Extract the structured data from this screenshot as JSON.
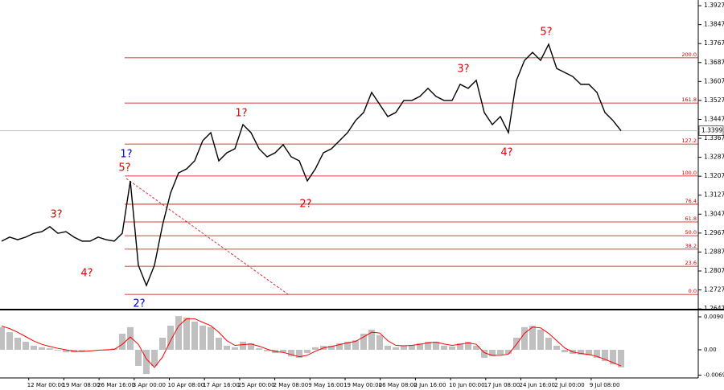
{
  "chart_data": [
    {
      "type": "line",
      "color": "#000000",
      "values": [
        1.2933,
        1.295,
        1.2939,
        1.295,
        1.2966,
        1.2973,
        1.2994,
        1.2966,
        1.2973,
        1.295,
        1.2933,
        1.2933,
        1.295,
        1.2939,
        1.2933,
        1.2966,
        1.3187,
        1.2831,
        1.2746,
        1.2831,
        1.3,
        1.3136,
        1.3221,
        1.3238,
        1.3272,
        1.3357,
        1.3391,
        1.3272,
        1.3306,
        1.3323,
        1.3425,
        1.3391,
        1.3323,
        1.3289,
        1.3306,
        1.334,
        1.3289,
        1.3272,
        1.3187,
        1.3238,
        1.3306,
        1.3323,
        1.3357,
        1.3391,
        1.3442,
        1.3476,
        1.3561,
        1.351,
        1.3459,
        1.3476,
        1.3527,
        1.3527,
        1.3544,
        1.3578,
        1.3544,
        1.3527,
        1.3527,
        1.3595,
        1.3578,
        1.3612,
        1.3476,
        1.3425,
        1.3459,
        1.3391,
        1.3612,
        1.3696,
        1.373,
        1.3696,
        1.3764,
        1.3662,
        1.3645,
        1.3628,
        1.3595,
        1.3595,
        1.3561,
        1.3476,
        1.3442,
        1.3399
      ],
      "x_labels": [
        "00",
        "12 Mar 00:00",
        "19 Mar 08:00",
        "26 Mar 16:00",
        "3 Apr 00:00",
        "10 Apr 08:00",
        "17 Apr 16:00",
        "25 Apr 00:00",
        "2 May 08:00",
        "9 May 16:00",
        "19 May 00:00",
        "26 May 08:00",
        "2 Jun 16:00",
        "10 Jun 00:00",
        "17 Jun 08:00",
        "24 Jun 16:00",
        "2 Jul 00:00",
        "9 Jul 08:00"
      ],
      "ylim": [
        1.2644,
        1.3951
      ],
      "yticks": [
        1.2647,
        1.2727,
        1.2807,
        1.2887,
        1.2967,
        1.3047,
        1.3127,
        1.3207,
        1.3287,
        1.3367,
        1.3447,
        1.3527,
        1.3607,
        1.3687,
        1.3767,
        1.3847,
        1.3927
      ],
      "last_price": 1.3399,
      "level_color": "#cc0000",
      "levels": [
        {
          "value": 1.3707,
          "label": "200.0"
        },
        {
          "value": 1.3516,
          "label": "161.8"
        },
        {
          "value": 1.3343,
          "label": "127.2"
        },
        {
          "value": 1.3208,
          "label": "100.0"
        },
        {
          "value": 1.3089,
          "label": "76.4"
        },
        {
          "value": 1.3014,
          "label": "61.8"
        },
        {
          "value": 1.2956,
          "label": "50.0"
        },
        {
          "value": 1.2899,
          "label": "38.2"
        },
        {
          "value": 1.2827,
          "label": "23.6"
        },
        {
          "value": 1.2708,
          "label": "0.0"
        }
      ],
      "annotations": [
        {
          "text": "3?",
          "color": "#dd0000"
        },
        {
          "text": "4?",
          "color": "#dd0000"
        },
        {
          "text": "1?",
          "color": "#0000cc"
        },
        {
          "text": "5?",
          "color": "#dd0000"
        },
        {
          "text": "2?",
          "color": "#0000cc"
        },
        {
          "text": "1?",
          "color": "#dd0000"
        },
        {
          "text": "2?",
          "color": "#dd0000"
        },
        {
          "text": "3?",
          "color": "#dd0000"
        },
        {
          "text": "4?",
          "color": "#dd0000"
        },
        {
          "text": "5?",
          "color": "#dd0000"
        }
      ]
    },
    {
      "type": "bar",
      "color": "#c0c0c0",
      "signal_color": "#ff0000",
      "values": [
        0.0062,
        0.0048,
        0.0033,
        0.0022,
        0.0011,
        0.0007,
        0.0004,
        -0.0002,
        -0.0007,
        -0.0007,
        -0.0004,
        0,
        0,
        -0.0002,
        0.0004,
        0.0044,
        0.0062,
        -0.0044,
        -0.0066,
        -0.0044,
        0.0033,
        0.0066,
        0.0092,
        0.0088,
        0.0077,
        0.0066,
        0.0062,
        0.0033,
        0.0011,
        0.0007,
        0.0022,
        0.0018,
        0.0004,
        -0.0004,
        -0.0009,
        -0.0007,
        -0.0018,
        -0.0022,
        -0.0009,
        0.0007,
        0.0011,
        0.0011,
        0.0018,
        0.0022,
        0.0026,
        0.0044,
        0.0055,
        0.004,
        0.0011,
        0.0007,
        0.0011,
        0.0013,
        0.0018,
        0.0022,
        0.0022,
        0.0011,
        0.0009,
        0.0018,
        0.0022,
        0.0011,
        -0.0022,
        -0.0018,
        -0.0013,
        -0.0011,
        0.0033,
        0.0062,
        0.0066,
        0.0055,
        0.0033,
        0.0011,
        -0.0007,
        -0.0011,
        -0.0013,
        -0.0015,
        -0.0022,
        -0.0031,
        -0.004,
        -0.0048
      ],
      "signal_values": [
        0.0065,
        0.0058,
        0.0048,
        0.0036,
        0.0024,
        0.0015,
        0.0009,
        0.0004,
        0,
        -0.0004,
        -0.0005,
        -0.0003,
        -0.0001,
        0,
        0.0001,
        0.0015,
        0.0035,
        0.0015,
        -0.0025,
        -0.0048,
        -0.002,
        0.0025,
        0.0065,
        0.0085,
        0.0085,
        0.0075,
        0.0066,
        0.0048,
        0.0025,
        0.0012,
        0.0014,
        0.0016,
        0.001,
        0.0002,
        -0.0005,
        -0.0007,
        -0.0013,
        -0.0019,
        -0.0015,
        -0.0004,
        0.0005,
        0.0009,
        0.0014,
        0.0019,
        0.0023,
        0.0035,
        0.0048,
        0.0046,
        0.0025,
        0.0012,
        0.0011,
        0.0012,
        0.0015,
        0.0019,
        0.0021,
        0.0016,
        0.0012,
        0.0015,
        0.0019,
        0.0015,
        -0.0008,
        -0.0015,
        -0.0015,
        -0.0012,
        0.0015,
        0.0045,
        0.0062,
        0.006,
        0.0045,
        0.0025,
        0.0005,
        -0.0006,
        -0.001,
        -0.0013,
        -0.0018,
        -0.0026,
        -0.0035,
        -0.0044
      ],
      "ylim": [
        -0.00769,
        0.01033
      ],
      "yticks": [
        0.00901,
        {
          "value": 0,
          "label": "0.00"
        },
        -0.00692
      ]
    }
  ]
}
